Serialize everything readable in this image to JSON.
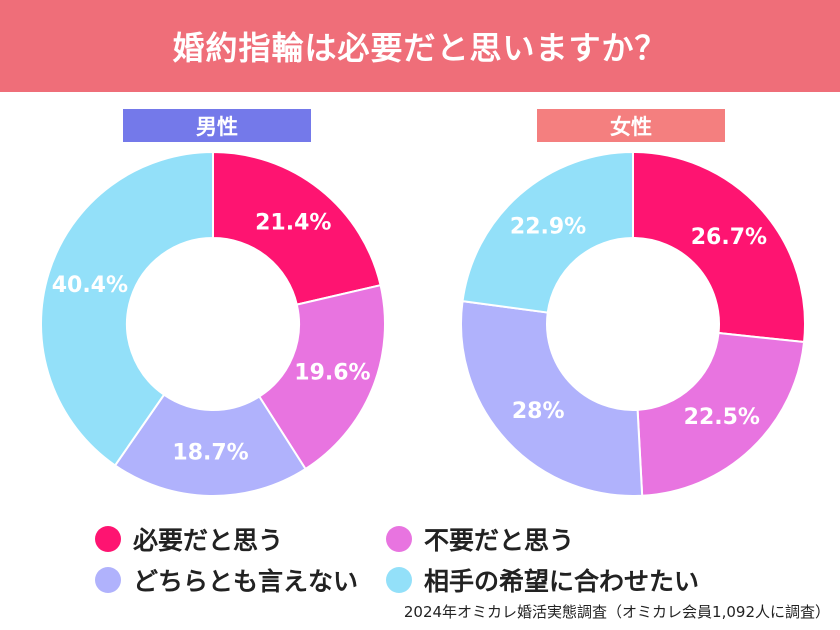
{
  "header": {
    "title": "婚約指輪は必要だと思いますか？"
  },
  "colors": {
    "header_bg": "#ef6e79",
    "male_tag": "#7479ea",
    "female_tag": "#f47f7f",
    "needed": "#fe1471",
    "not_needed": "#e874e0",
    "either": "#b0b2fc",
    "partner": "#93e0f9"
  },
  "legend": [
    {
      "label": "必要だと思う",
      "color": "#fe1471"
    },
    {
      "label": "不要だと思う",
      "color": "#e874e0"
    },
    {
      "label": "どちらとも言えない",
      "color": "#b0b2fc"
    },
    {
      "label": "相手の希望に合わせたい",
      "color": "#93e0f9"
    }
  ],
  "source": "2024年オミカレ婚活実態調査（オミカレ会員1,092人に調査）",
  "chart_data": [
    {
      "type": "pie",
      "title": "男性",
      "categories": [
        "必要だと思う",
        "不要だと思う",
        "どちらとも言えない",
        "相手の希望に合わせたい"
      ],
      "values": [
        21.4,
        19.6,
        18.7,
        40.4
      ],
      "labels": [
        "21.4%",
        "19.6%",
        "18.7%",
        "40.4%"
      ],
      "colors": [
        "#fe1471",
        "#e874e0",
        "#b0b2fc",
        "#93e0f9"
      ],
      "donut": true
    },
    {
      "type": "pie",
      "title": "女性",
      "categories": [
        "必要だと思う",
        "不要だと思う",
        "どちらとも言えない",
        "相手の希望に合わせたい"
      ],
      "values": [
        26.7,
        22.5,
        28,
        22.9
      ],
      "labels": [
        "26.7%",
        "22.5%",
        "28%",
        "22.9%"
      ],
      "colors": [
        "#fe1471",
        "#e874e0",
        "#b0b2fc",
        "#93e0f9"
      ],
      "donut": true
    }
  ]
}
